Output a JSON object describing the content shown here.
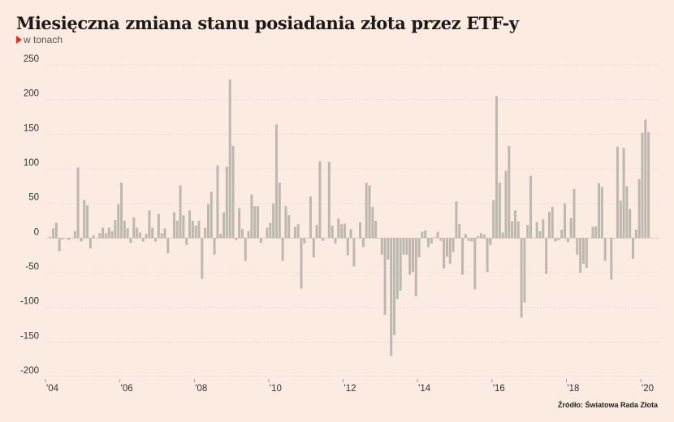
{
  "title": "Miesięczna zmiana stanu posiadania złota przez ETF-y",
  "subtitle": "w tonach",
  "source": "Źródło: Światowa Rada Złota",
  "colors": {
    "background": "#fcebe1",
    "bar": "#bdb8ad",
    "grid": "#cfcfcf",
    "accent": "#e0302a"
  },
  "chart_data": {
    "type": "bar",
    "title": "Miesięczna zmiana stanu posiadania złota przez ETF-y",
    "subtitle": "w tonach",
    "xlabel": "",
    "ylabel": "",
    "ylim": [
      -200,
      250
    ],
    "yticks": [
      250,
      200,
      150,
      100,
      50,
      0,
      -50,
      -100,
      -150,
      -200
    ],
    "grid": true,
    "x_start": "2004-01",
    "x_end": "2020-06",
    "xtick_labels": [
      {
        "label": "'04",
        "date": "2004-01"
      },
      {
        "label": "'06",
        "date": "2006-01"
      },
      {
        "label": "'08",
        "date": "2008-01"
      },
      {
        "label": "'10",
        "date": "2010-01"
      },
      {
        "label": "'12",
        "date": "2012-01"
      },
      {
        "label": "'14",
        "date": "2014-01"
      },
      {
        "label": "'16",
        "date": "2016-01"
      },
      {
        "label": "'18",
        "date": "2018-01"
      },
      {
        "label": "'20",
        "date": "2020-01"
      }
    ],
    "series": [
      {
        "values": [
          0,
          2,
          14,
          22,
          -19,
          -2,
          0,
          -3,
          0,
          10,
          102,
          -5,
          55,
          47,
          -15,
          4,
          0,
          7,
          15,
          7,
          15,
          10,
          26,
          49,
          80,
          25,
          14,
          -7,
          30,
          15,
          8,
          -5,
          6,
          40,
          15,
          -5,
          35,
          7,
          14,
          -22,
          0,
          37,
          25,
          76,
          33,
          -10,
          40,
          25,
          18,
          25,
          -59,
          15,
          49,
          67,
          -24,
          105,
          6,
          37,
          103,
          229,
          133,
          -3,
          43,
          13,
          -33,
          10,
          63,
          46,
          46,
          -7,
          0,
          15,
          22,
          50,
          164,
          80,
          -33,
          46,
          33,
          0,
          16,
          20,
          -73,
          -8,
          0,
          60,
          -28,
          19,
          111,
          -4,
          0,
          110,
          18,
          -8,
          28,
          20,
          21,
          -25,
          13,
          -41,
          0,
          23,
          -13,
          80,
          76,
          45,
          25,
          0,
          -24,
          -111,
          -31,
          -170,
          -140,
          -88,
          -76,
          -24,
          -24,
          -53,
          -49,
          -84,
          -28,
          9,
          11,
          -13,
          -8,
          1,
          9,
          -4,
          -44,
          -27,
          -37,
          -20,
          53,
          20,
          -53,
          6,
          -4,
          -5,
          -74,
          3,
          7,
          5,
          -49,
          -10,
          55,
          205,
          80,
          8,
          97,
          133,
          24,
          40,
          24,
          -115,
          -93,
          19,
          90,
          0,
          23,
          10,
          27,
          -52,
          38,
          45,
          -5,
          -3,
          12,
          50,
          -6,
          29,
          71,
          -24,
          -50,
          -37,
          -43,
          0,
          16,
          17,
          79,
          74,
          -33,
          0,
          -60,
          0,
          132,
          54,
          130,
          75,
          42,
          -30,
          12,
          85,
          152,
          171,
          153
        ]
      }
    ]
  }
}
